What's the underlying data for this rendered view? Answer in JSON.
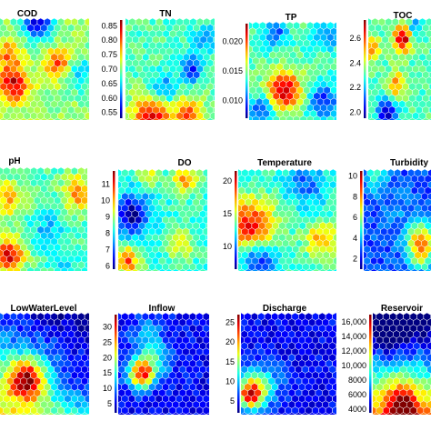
{
  "chart_data": [
    {
      "type": "heatmap",
      "title": "COD",
      "legend_position": "none",
      "ticks": [],
      "colorbar": false,
      "pattern": {
        "base": 0.52,
        "blobs": [
          {
            "cx": 0.42,
            "cy": 0.05,
            "r": 0.12,
            "v": -0.45
          },
          {
            "cx": 0.15,
            "cy": 0.65,
            "r": 0.12,
            "v": 0.4
          },
          {
            "cx": 0.65,
            "cy": 0.45,
            "r": 0.1,
            "v": 0.3
          },
          {
            "cx": 0.1,
            "cy": 0.35,
            "r": 0.1,
            "v": 0.25
          },
          {
            "cx": 0.9,
            "cy": 0.55,
            "r": 0.12,
            "v": -0.2
          }
        ]
      }
    },
    {
      "type": "heatmap",
      "title": "TN",
      "legend_position": "left",
      "ticks": [
        "0.85",
        "0.80",
        "0.75",
        "0.70",
        "0.65",
        "0.60",
        "0.55"
      ],
      "range": [
        0.53,
        0.87
      ],
      "colorbar": true,
      "pattern": {
        "base": 0.45,
        "blobs": [
          {
            "cx": 0.3,
            "cy": 0.95,
            "r": 0.16,
            "v": 0.45
          },
          {
            "cx": 0.72,
            "cy": 0.95,
            "r": 0.12,
            "v": 0.35
          },
          {
            "cx": 0.42,
            "cy": 0.72,
            "r": 0.12,
            "v": -0.25
          },
          {
            "cx": 0.75,
            "cy": 0.5,
            "r": 0.08,
            "v": -0.35
          },
          {
            "cx": 0.9,
            "cy": 0.2,
            "r": 0.1,
            "v": -0.15
          }
        ]
      }
    },
    {
      "type": "heatmap",
      "title": "TP",
      "legend_position": "left",
      "ticks": [
        "0.020",
        "0.015",
        "0.010"
      ],
      "range": [
        0.007,
        0.023
      ],
      "colorbar": true,
      "pattern": {
        "base": 0.45,
        "blobs": [
          {
            "cx": 0.4,
            "cy": 0.7,
            "r": 0.14,
            "v": 0.5
          },
          {
            "cx": 0.15,
            "cy": 0.9,
            "r": 0.1,
            "v": -0.3
          },
          {
            "cx": 0.85,
            "cy": 0.8,
            "r": 0.12,
            "v": -0.3
          },
          {
            "cx": 0.3,
            "cy": 0.1,
            "r": 0.1,
            "v": -0.25
          },
          {
            "cx": 0.9,
            "cy": 0.15,
            "r": 0.1,
            "v": -0.2
          }
        ]
      }
    },
    {
      "type": "heatmap",
      "title": "TOC",
      "legend_position": "left",
      "ticks": [
        "2.6",
        "2.4",
        "2.2",
        "2.0"
      ],
      "range": [
        1.95,
        2.75
      ],
      "colorbar": true,
      "pattern": {
        "base": 0.45,
        "blobs": [
          {
            "cx": 0.55,
            "cy": 0.2,
            "r": 0.1,
            "v": 0.5
          },
          {
            "cx": 0.05,
            "cy": 0.3,
            "r": 0.1,
            "v": 0.3
          },
          {
            "cx": 0.45,
            "cy": 0.65,
            "r": 0.1,
            "v": 0.3
          },
          {
            "cx": 0.3,
            "cy": 0.95,
            "r": 0.12,
            "v": -0.35
          },
          {
            "cx": 0.75,
            "cy": 0.1,
            "r": 0.08,
            "v": -0.2
          }
        ]
      }
    },
    {
      "type": "heatmap",
      "title": "pH",
      "legend_position": "none",
      "ticks": [],
      "colorbar": false,
      "pattern": {
        "base": 0.45,
        "blobs": [
          {
            "cx": 0.1,
            "cy": 0.85,
            "r": 0.12,
            "v": 0.45
          },
          {
            "cx": 0.9,
            "cy": 0.25,
            "r": 0.12,
            "v": 0.3
          },
          {
            "cx": 0.1,
            "cy": 0.3,
            "r": 0.12,
            "v": 0.25
          },
          {
            "cx": 0.55,
            "cy": 0.6,
            "r": 0.12,
            "v": -0.15
          },
          {
            "cx": 0.75,
            "cy": 0.9,
            "r": 0.1,
            "v": -0.1
          }
        ]
      }
    },
    {
      "type": "heatmap",
      "title": "DO",
      "legend_position": "left",
      "ticks": [
        "11",
        "10",
        "9",
        "8",
        "7",
        "6"
      ],
      "range": [
        5.8,
        11.8
      ],
      "colorbar": true,
      "pattern": {
        "base": 0.42,
        "blobs": [
          {
            "cx": 0.15,
            "cy": 0.45,
            "r": 0.14,
            "v": -0.4
          },
          {
            "cx": 0.1,
            "cy": 0.9,
            "r": 0.1,
            "v": 0.4
          },
          {
            "cx": 0.75,
            "cy": 0.1,
            "r": 0.1,
            "v": 0.3
          },
          {
            "cx": 0.35,
            "cy": 0.05,
            "r": 0.08,
            "v": 0.2
          },
          {
            "cx": 0.7,
            "cy": 0.75,
            "r": 0.1,
            "v": 0.2
          }
        ]
      }
    },
    {
      "type": "heatmap",
      "title": "Temperature",
      "legend_position": "left",
      "ticks": [
        "20",
        "15",
        "10"
      ],
      "range": [
        6.5,
        21.5
      ],
      "colorbar": true,
      "pattern": {
        "base": 0.42,
        "blobs": [
          {
            "cx": 0.12,
            "cy": 0.55,
            "r": 0.18,
            "v": 0.45
          },
          {
            "cx": 0.85,
            "cy": 0.7,
            "r": 0.12,
            "v": 0.3
          },
          {
            "cx": 0.2,
            "cy": 0.9,
            "r": 0.12,
            "v": -0.3
          },
          {
            "cx": 0.7,
            "cy": 0.15,
            "r": 0.14,
            "v": -0.2
          }
        ]
      }
    },
    {
      "type": "heatmap",
      "title": "Turbidity",
      "legend_position": "left",
      "ticks": [
        "10",
        "8",
        "6",
        "4",
        "2"
      ],
      "range": [
        1.0,
        10.5
      ],
      "colorbar": true,
      "pattern": {
        "base": 0.2,
        "blobs": [
          {
            "cx": 0.85,
            "cy": 0.75,
            "r": 0.14,
            "v": 0.6
          },
          {
            "cx": 0.2,
            "cy": 0.05,
            "r": 0.12,
            "v": 0.2
          },
          {
            "cx": 0.6,
            "cy": 0.5,
            "r": 0.18,
            "v": 0.05
          }
        ]
      }
    },
    {
      "type": "heatmap",
      "title": "LowWaterLevel",
      "legend_position": "none",
      "ticks": [],
      "colorbar": false,
      "pattern": {
        "base": 0.3,
        "gradient": {
          "dx": -0.1,
          "dy": 0.25
        },
        "blobs": [
          {
            "cx": 0.3,
            "cy": 0.65,
            "r": 0.14,
            "v": 0.6
          },
          {
            "cx": 0.85,
            "cy": 0.7,
            "r": 0.2,
            "v": -0.15
          }
        ]
      }
    },
    {
      "type": "heatmap",
      "title": "Inflow",
      "legend_position": "left",
      "ticks": [
        "30",
        "25",
        "20",
        "15",
        "10",
        "5"
      ],
      "range": [
        2.0,
        34.0
      ],
      "colorbar": true,
      "pattern": {
        "base": 0.12,
        "blobs": [
          {
            "cx": 0.25,
            "cy": 0.6,
            "r": 0.1,
            "v": 0.7
          },
          {
            "cx": 0.4,
            "cy": 0.45,
            "r": 0.14,
            "v": 0.25
          },
          {
            "cx": 0.3,
            "cy": 0.2,
            "r": 0.12,
            "v": 0.15
          }
        ]
      }
    },
    {
      "type": "heatmap",
      "title": "Discharge",
      "legend_position": "left",
      "ticks": [
        "25",
        "20",
        "15",
        "10",
        "5"
      ],
      "range": [
        2.0,
        27.0
      ],
      "colorbar": true,
      "pattern": {
        "base": 0.12,
        "blobs": [
          {
            "cx": 0.1,
            "cy": 0.8,
            "r": 0.1,
            "v": 0.65
          },
          {
            "cx": 0.2,
            "cy": 0.7,
            "r": 0.16,
            "v": 0.25
          }
        ]
      }
    },
    {
      "type": "heatmap",
      "title": "Reservoir",
      "legend_position": "left",
      "ticks": [
        "16,000",
        "14,000",
        "12,000",
        "10,000",
        "8000",
        "6000",
        "4000"
      ],
      "range": [
        3500,
        17000
      ],
      "colorbar": true,
      "pattern": {
        "base": 0.3,
        "gradient": {
          "dx": 0.0,
          "dy": 0.45
        },
        "blobs": [
          {
            "cx": 0.5,
            "cy": 0.95,
            "r": 0.18,
            "v": 0.45
          },
          {
            "cx": 0.3,
            "cy": 0.1,
            "r": 0.2,
            "v": -0.2
          }
        ]
      }
    }
  ]
}
